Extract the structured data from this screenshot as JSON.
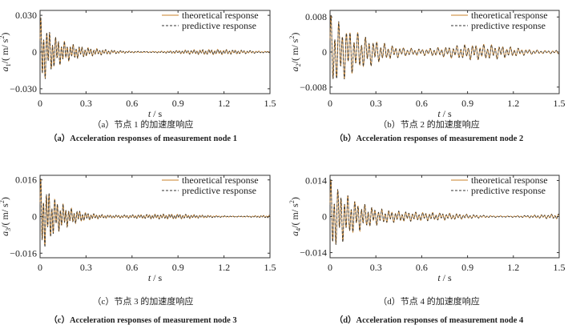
{
  "chart_data": [
    {
      "type": "line",
      "panel": "a",
      "ylabel_var": "a",
      "ylabel_sub": "1",
      "ylabel_unit": "/( m/ s",
      "ylabel_sup": "2",
      "ylabel_end": ")",
      "xlabel_var": "t",
      "xlabel_unit": " / s",
      "xlim": [
        0,
        1.5
      ],
      "ylim": [
        -0.034,
        0.034
      ],
      "xticks": [
        "0",
        "0.3",
        "0.6",
        "0.9",
        "1.2",
        "1.5"
      ],
      "yticks": [
        {
          "v": 0.03,
          "label": "0.030"
        },
        {
          "v": 0,
          "label": "0"
        },
        {
          "v": -0.03,
          "label": "-0.030"
        }
      ],
      "series": [
        {
          "name": "theoretical response",
          "color": "#c8822a",
          "style": "solid"
        },
        {
          "name": "predictive response",
          "color": "#333333",
          "style": "dashed"
        }
      ],
      "signal": {
        "peak": 0.026,
        "decay": 9,
        "floor": 0.002,
        "f1": 52,
        "f2": 19
      },
      "caption_cn": "（a）节点 1 的加速度响应",
      "caption_en": "（a）Acceleration responses of measurement node 1"
    },
    {
      "type": "line",
      "panel": "b",
      "ylabel_var": "a",
      "ylabel_sub": "2",
      "ylabel_unit": "/( m/ s",
      "ylabel_sup": "2",
      "ylabel_end": ")",
      "xlabel_var": "t",
      "xlabel_unit": " / s",
      "xlim": [
        0,
        1.5
      ],
      "ylim": [
        -0.0095,
        0.0095
      ],
      "xticks": [
        "0",
        "0.3",
        "0.6",
        "0.9",
        "1.2",
        "1.5"
      ],
      "yticks": [
        {
          "v": 0.008,
          "label": "0.008"
        },
        {
          "v": 0,
          "label": "0"
        },
        {
          "v": -0.008,
          "label": "-0.008"
        }
      ],
      "series": [
        {
          "name": "theoretical response",
          "color": "#c8822a",
          "style": "solid"
        },
        {
          "name": "predictive response",
          "color": "#333333",
          "style": "dashed"
        }
      ],
      "signal": {
        "peak": 0.0065,
        "decay": 5,
        "floor": 0.0016,
        "f1": 40,
        "f2": 17
      },
      "caption_cn": "（b）节点 2 的加速度响应",
      "caption_en": "（b）Acceleration responses of measurement node 2"
    },
    {
      "type": "line",
      "panel": "c",
      "ylabel_var": "a",
      "ylabel_sub": "3",
      "ylabel_unit": "/( m/ s",
      "ylabel_sup": "2",
      "ylabel_end": ")",
      "xlabel_var": "t",
      "xlabel_unit": " / s",
      "xlim": [
        0,
        1.5
      ],
      "ylim": [
        -0.018,
        0.018
      ],
      "xticks": [
        "0",
        "0.3",
        "0.6",
        "0.9",
        "1.2",
        "1.5"
      ],
      "yticks": [
        {
          "v": 0.016,
          "label": "0.016"
        },
        {
          "v": 0,
          "label": "0"
        },
        {
          "v": -0.016,
          "label": "-0.016"
        }
      ],
      "series": [
        {
          "name": "theoretical response",
          "color": "#c8822a",
          "style": "solid"
        },
        {
          "name": "predictive response",
          "color": "#333333",
          "style": "dashed"
        }
      ],
      "signal": {
        "peak": 0.015,
        "decay": 8,
        "floor": 0.001,
        "f1": 55,
        "f2": 20
      },
      "caption_cn": "（c）节点 3 的加速度响应",
      "caption_en": "（c）Acceleration responses of measurement node 3"
    },
    {
      "type": "line",
      "panel": "d",
      "ylabel_var": "a",
      "ylabel_sub": "4",
      "ylabel_unit": "/( m/ s",
      "ylabel_sup": "2",
      "ylabel_end": ")",
      "xlabel_var": "t",
      "xlabel_unit": " / s",
      "xlim": [
        0,
        1.5
      ],
      "ylim": [
        -0.016,
        0.016
      ],
      "xticks": [
        "0",
        "0.3",
        "0.6",
        "0.9",
        "1.2",
        "1.5"
      ],
      "yticks": [
        {
          "v": 0.014,
          "label": "0.014"
        },
        {
          "v": 0,
          "label": "0"
        },
        {
          "v": -0.014,
          "label": "-0.014"
        }
      ],
      "series": [
        {
          "name": "theoretical response",
          "color": "#c8822a",
          "style": "solid"
        },
        {
          "name": "predictive response",
          "color": "#333333",
          "style": "dashed"
        }
      ],
      "signal": {
        "peak": 0.013,
        "decay": 5,
        "floor": 0.001,
        "f1": 45,
        "f2": 18
      },
      "caption_cn": "（d）节点 4 的加速度响应",
      "caption_en": "（d）Acceleration responses of measurement node 4"
    }
  ]
}
